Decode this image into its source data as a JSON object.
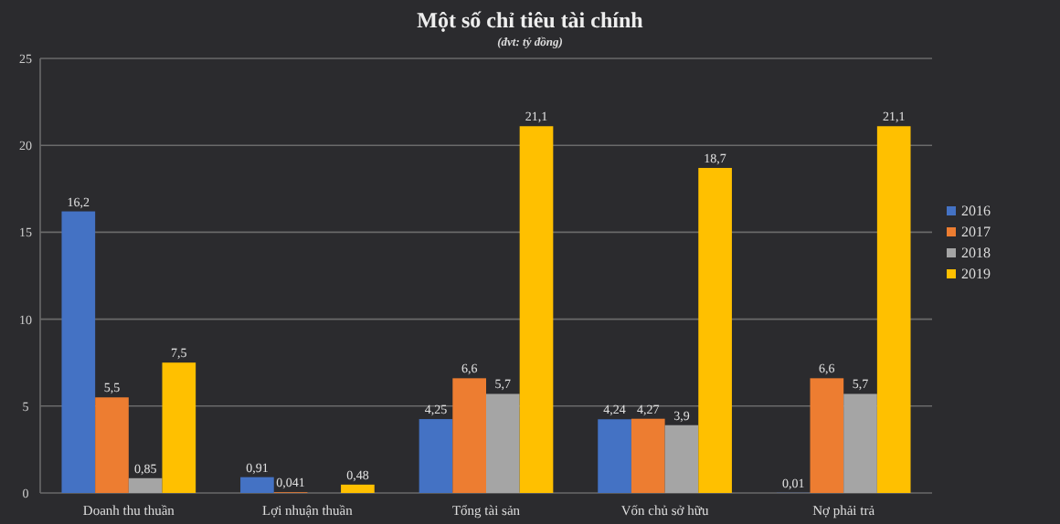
{
  "chart_data": {
    "type": "bar",
    "title": "Một số chỉ tiêu tài chính",
    "subtitle": "(đvt: tỷ đồng)",
    "categories": [
      "Doanh thu thuần",
      "Lợi nhuận thuần",
      "Tổng tài sản",
      "Vốn chủ sở hữu",
      "Nợ phải trả"
    ],
    "series": [
      {
        "name": "2016",
        "color": "#4472c4",
        "values": [
          16.2,
          0.91,
          4.25,
          4.24,
          0.01
        ],
        "value_labels": [
          "16,2",
          "0,91",
          "4,25",
          "4,24",
          "0,01"
        ]
      },
      {
        "name": "2017",
        "color": "#ed7d31",
        "values": [
          5.5,
          0.041,
          6.6,
          4.27,
          6.6
        ],
        "value_labels": [
          "5,5",
          "0,041",
          "6,6",
          "4,27",
          "6,6"
        ]
      },
      {
        "name": "2018",
        "color": "#a5a5a5",
        "values": [
          0.85,
          null,
          5.7,
          3.9,
          5.7
        ],
        "value_labels": [
          "0,85",
          null,
          "5,7",
          "3,9",
          "5,7"
        ]
      },
      {
        "name": "2019",
        "color": "#ffc000",
        "values": [
          7.5,
          0.48,
          21.1,
          18.7,
          21.1
        ],
        "value_labels": [
          "7,5",
          "0,48",
          "21,1",
          "18,7",
          "21,1"
        ]
      }
    ],
    "ylim": [
      0,
      25
    ],
    "yticks": [
      0,
      5,
      10,
      15,
      20,
      25
    ],
    "grid": "y",
    "legend": "right"
  }
}
